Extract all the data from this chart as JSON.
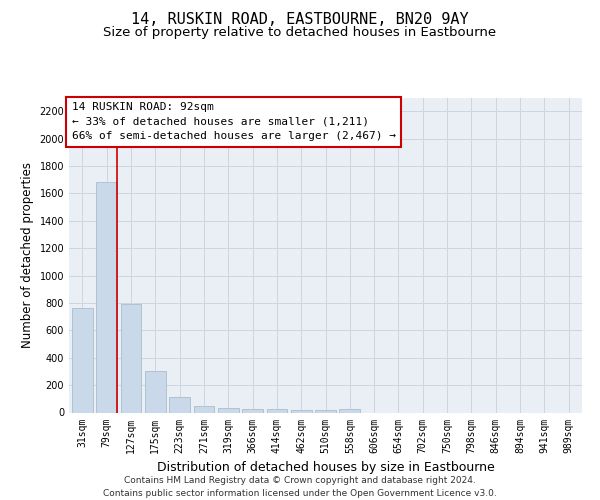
{
  "title": "14, RUSKIN ROAD, EASTBOURNE, BN20 9AY",
  "subtitle": "Size of property relative to detached houses in Eastbourne",
  "xlabel": "Distribution of detached houses by size in Eastbourne",
  "ylabel": "Number of detached properties",
  "footer_line1": "Contains HM Land Registry data © Crown copyright and database right 2024.",
  "footer_line2": "Contains public sector information licensed under the Open Government Licence v3.0.",
  "categories": [
    "31sqm",
    "79sqm",
    "127sqm",
    "175sqm",
    "223sqm",
    "271sqm",
    "319sqm",
    "366sqm",
    "414sqm",
    "462sqm",
    "510sqm",
    "558sqm",
    "606sqm",
    "654sqm",
    "702sqm",
    "750sqm",
    "798sqm",
    "846sqm",
    "894sqm",
    "941sqm",
    "989sqm"
  ],
  "values": [
    760,
    1680,
    790,
    300,
    110,
    45,
    35,
    27,
    22,
    20,
    20,
    25,
    0,
    0,
    0,
    0,
    0,
    0,
    0,
    0,
    0
  ],
  "bar_color": "#c9d9ea",
  "bar_edge_color": "#aabccc",
  "red_line_x": 1.425,
  "property_label": "14 RUSKIN ROAD: 92sqm",
  "annotation_line1": "← 33% of detached houses are smaller (1,211)",
  "annotation_line2": "66% of semi-detached houses are larger (2,467) →",
  "annotation_box_facecolor": "#ffffff",
  "annotation_box_edgecolor": "#cc0000",
  "red_line_color": "#cc0000",
  "ylim": [
    0,
    2300
  ],
  "yticks": [
    0,
    200,
    400,
    600,
    800,
    1000,
    1200,
    1400,
    1600,
    1800,
    2000,
    2200
  ],
  "grid_color": "#cdd5e0",
  "bg_color": "#eaeff5",
  "title_fontsize": 11,
  "subtitle_fontsize": 9.5,
  "xlabel_fontsize": 9,
  "ylabel_fontsize": 8.5,
  "tick_fontsize": 7,
  "annot_fontsize": 8,
  "footer_fontsize": 6.5
}
